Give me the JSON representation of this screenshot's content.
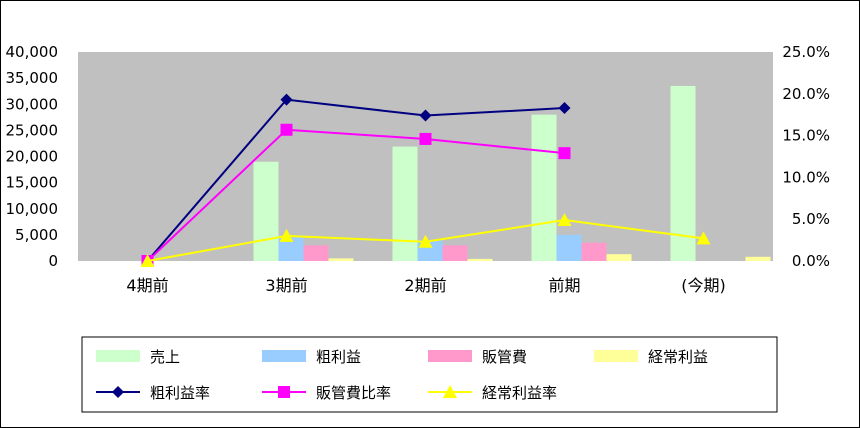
{
  "chart_data": {
    "type": "bar",
    "categories": [
      "4期前",
      "3期前",
      "2期前",
      "前期",
      "(今期)"
    ],
    "bar_series": [
      {
        "name": "売上",
        "color": "#CCFFCC",
        "values": [
          0,
          19000,
          21900,
          28000,
          33500
        ]
      },
      {
        "name": "粗利益",
        "color": "#99CCFF",
        "values": [
          0,
          4500,
          4000,
          5000,
          0
        ]
      },
      {
        "name": "販管費",
        "color": "#FF99CC",
        "values": [
          0,
          3000,
          3000,
          3500,
          0
        ]
      },
      {
        "name": "経常利益",
        "color": "#FFFF99",
        "values": [
          0,
          500,
          400,
          1300,
          800
        ]
      }
    ],
    "line_series": [
      {
        "name": "粗利益率",
        "color": "#000080",
        "marker": "diamond",
        "values": [
          0.0,
          19.3,
          17.4,
          18.3,
          null
        ]
      },
      {
        "name": "販管費比率",
        "color": "#FF00FF",
        "marker": "square",
        "values": [
          0.0,
          15.7,
          14.6,
          12.9,
          null
        ]
      },
      {
        "name": "経常利益率",
        "color": "#FFFF00",
        "marker": "triangle",
        "values": [
          0.0,
          3.0,
          2.3,
          4.9,
          2.7
        ]
      }
    ],
    "y_left": {
      "min": 0,
      "max": 40000,
      "step": 5000,
      "tick_labels": [
        "0",
        "5,000",
        "10,000",
        "15,000",
        "20,000",
        "25,000",
        "30,000",
        "35,000",
        "40,000"
      ]
    },
    "y_right": {
      "min": 0,
      "max": 25,
      "step": 5,
      "tick_labels": [
        "0.0%",
        "5.0%",
        "10.0%",
        "15.0%",
        "20.0%",
        "25.0%"
      ]
    },
    "legend_position": "bottom",
    "plot_background": "#C0C0C0"
  }
}
